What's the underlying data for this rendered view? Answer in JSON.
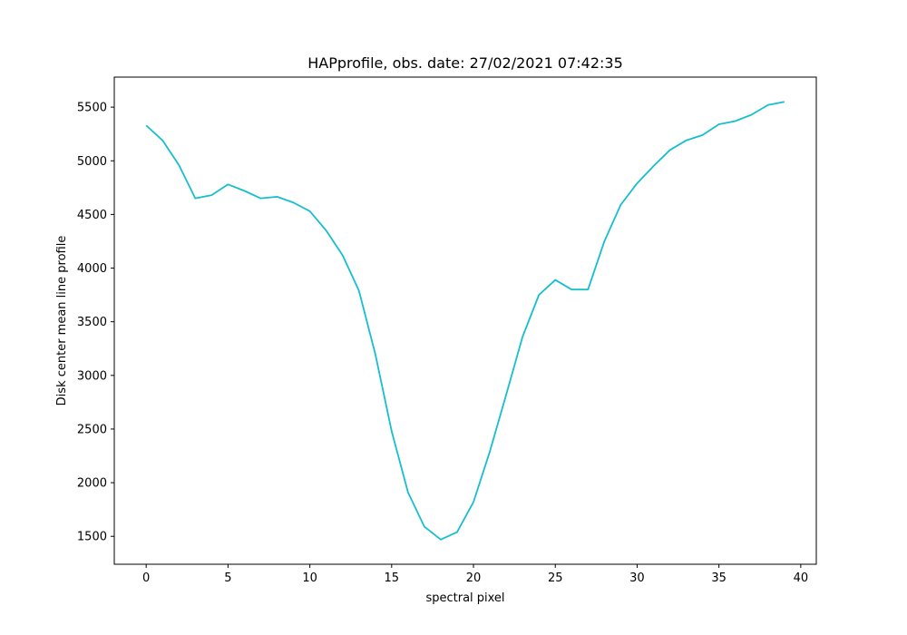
{
  "chart_data": {
    "type": "line",
    "title": "HAPprofile, obs. date: 27/02/2021 07:42:35",
    "xlabel": "spectral pixel",
    "ylabel": "Disk center mean line profile",
    "xlim": [
      -1.95,
      40.95
    ],
    "ylim": [
      1240,
      5780
    ],
    "xticks": [
      0,
      5,
      10,
      15,
      20,
      25,
      30,
      35,
      40
    ],
    "yticks": [
      1500,
      2000,
      2500,
      3000,
      3500,
      4000,
      4500,
      5000,
      5500
    ],
    "grid": false,
    "line_color": "#17becf",
    "series": [
      {
        "x": [
          0,
          1,
          2,
          3,
          4,
          5,
          6,
          7,
          8,
          9,
          10,
          11,
          12,
          13,
          14,
          15,
          16,
          17,
          18,
          19,
          20,
          21,
          22,
          23,
          24,
          25,
          26,
          27,
          28,
          29,
          30,
          31,
          32,
          33,
          34,
          35,
          36,
          37,
          38,
          39
        ],
        "values": [
          5330,
          5190,
          4960,
          4650,
          4680,
          4780,
          4720,
          4650,
          4665,
          4610,
          4530,
          4350,
          4120,
          3790,
          3200,
          2480,
          1910,
          1590,
          1470,
          1540,
          1820,
          2290,
          2820,
          3360,
          3750,
          3890,
          3800,
          3800,
          4250,
          4590,
          4790,
          4950,
          5100,
          5190,
          5240,
          5340,
          5370,
          5430,
          5520,
          5550
        ]
      }
    ]
  }
}
